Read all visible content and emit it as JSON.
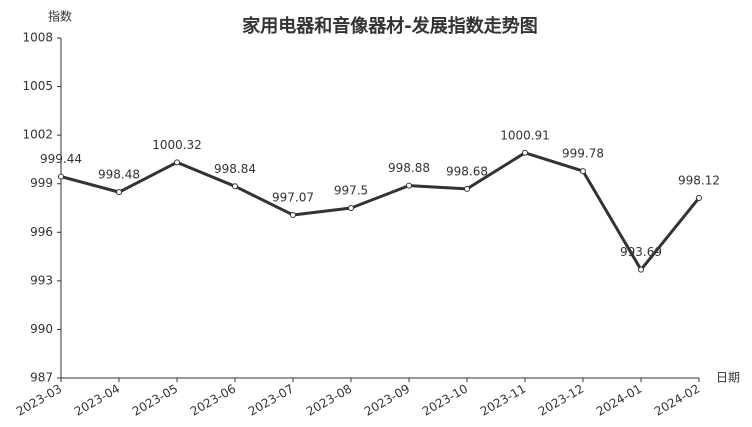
{
  "chart_data": {
    "type": "line",
    "title": "家用电器和音像器材-发展指数走势图",
    "y_label": "指数",
    "x_label": "日期",
    "categories": [
      "2023-03",
      "2023-04",
      "2023-05",
      "2023-06",
      "2023-07",
      "2023-08",
      "2023-09",
      "2023-10",
      "2023-11",
      "2023-12",
      "2024-01",
      "2024-02"
    ],
    "series": [
      {
        "color": "#333333",
        "values": [
          999.44,
          998.48,
          1000.32,
          998.84,
          997.07,
          997.5,
          998.88,
          998.68,
          1000.91,
          999.78,
          993.69,
          998.12
        ]
      }
    ],
    "ylim": [
      987,
      1008
    ],
    "yticks": [
      987,
      990,
      993,
      996,
      999,
      1002,
      1005,
      1008
    ],
    "grid": false
  }
}
